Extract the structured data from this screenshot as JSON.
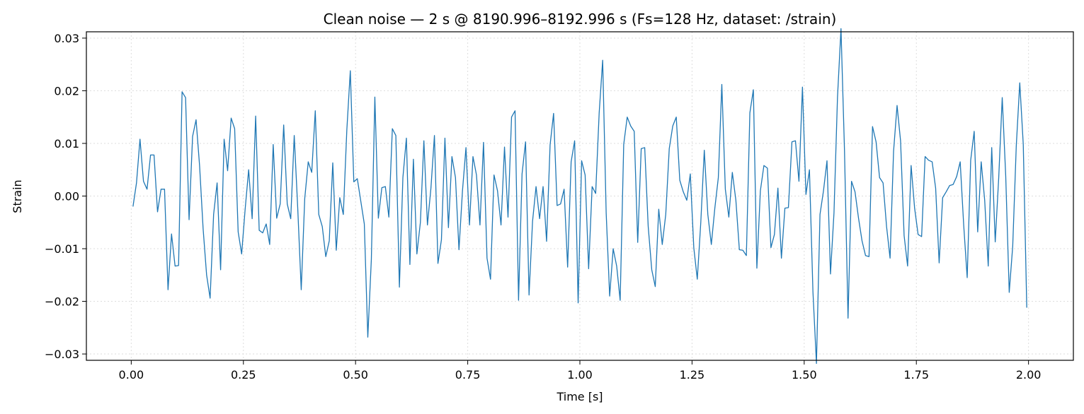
{
  "chart_data": {
    "type": "line",
    "title": "Clean noise — 2 s @ 8190.996–8192.996 s  (Fs=128 Hz, dataset: /strain)",
    "xlabel": "Time [s]",
    "ylabel": "Strain",
    "xlim": [
      -0.1,
      2.1
    ],
    "ylim": [
      -0.0312,
      0.0312
    ],
    "xticks": [
      0.0,
      0.25,
      0.5,
      0.75,
      1.0,
      1.25,
      1.5,
      1.75,
      2.0
    ],
    "xtick_labels": [
      "0.00",
      "0.25",
      "0.50",
      "0.75",
      "1.00",
      "1.25",
      "1.50",
      "1.75",
      "2.00"
    ],
    "yticks": [
      0.03,
      0.02,
      0.01,
      0.0,
      -0.01,
      -0.02,
      -0.03
    ],
    "ytick_labels": [
      "0.03",
      "0.02",
      "0.01",
      "0.00",
      "−0.01",
      "−0.02",
      "−0.03"
    ],
    "grid": true,
    "colors": {
      "series": "#1f77b4",
      "grid": "#dddddd",
      "axes": "#000000"
    },
    "series": [
      {
        "x": [
          0.0039,
          0.0117,
          0.0195,
          0.0273,
          0.0352,
          0.043,
          0.0508,
          0.0586,
          0.0664,
          0.0742,
          0.082,
          0.0898,
          0.0977,
          0.1055,
          0.1133,
          0.1211,
          0.1289,
          0.1367,
          0.1445,
          0.1523,
          0.1602,
          0.168,
          0.1758,
          0.1836,
          0.1914,
          0.1992,
          0.207,
          0.2148,
          0.2227,
          0.2305,
          0.2383,
          0.2461,
          0.2539,
          0.2617,
          0.2695,
          0.2773,
          0.2852,
          0.293,
          0.3008,
          0.3086,
          0.3164,
          0.3242,
          0.332,
          0.3398,
          0.3477,
          0.3555,
          0.3633,
          0.3711,
          0.3789,
          0.3867,
          0.3945,
          0.4023,
          0.4102,
          0.418,
          0.4258,
          0.4336,
          0.4414,
          0.4492,
          0.457,
          0.4648,
          0.4727,
          0.4805,
          0.4883,
          0.4961,
          0.5039,
          0.5117,
          0.5195,
          0.5273,
          0.5352,
          0.543,
          0.5508,
          0.5586,
          0.5664,
          0.5742,
          0.582,
          0.5898,
          0.5977,
          0.6055,
          0.6133,
          0.6211,
          0.6289,
          0.6367,
          0.6445,
          0.6523,
          0.6602,
          0.668,
          0.6758,
          0.6836,
          0.6914,
          0.6992,
          0.707,
          0.7148,
          0.7227,
          0.7305,
          0.7383,
          0.7461,
          0.7539,
          0.7617,
          0.7695,
          0.7773,
          0.7852,
          0.793,
          0.8008,
          0.8086,
          0.8164,
          0.8242,
          0.832,
          0.8398,
          0.8477,
          0.8555,
          0.8633,
          0.8711,
          0.8789,
          0.8867,
          0.8945,
          0.9023,
          0.9102,
          0.918,
          0.9258,
          0.9336,
          0.9414,
          0.9492,
          0.957,
          0.9648,
          0.9727,
          0.9805,
          0.9883,
          0.9961,
          1.0039,
          1.0117,
          1.0195,
          1.0273,
          1.0352,
          1.043,
          1.0508,
          1.0586,
          1.0664,
          1.0742,
          1.082,
          1.0898,
          1.0977,
          1.1055,
          1.1133,
          1.1211,
          1.1289,
          1.1367,
          1.1445,
          1.1523,
          1.1602,
          1.168,
          1.1758,
          1.1836,
          1.1914,
          1.1992,
          1.207,
          1.2148,
          1.2227,
          1.2305,
          1.2383,
          1.2461,
          1.2539,
          1.2617,
          1.2695,
          1.2773,
          1.2852,
          1.293,
          1.3008,
          1.3086,
          1.3164,
          1.3242,
          1.332,
          1.3398,
          1.3477,
          1.3555,
          1.3633,
          1.3711,
          1.3789,
          1.3867,
          1.3945,
          1.4023,
          1.4102,
          1.418,
          1.4258,
          1.4336,
          1.4414,
          1.4492,
          1.457,
          1.4648,
          1.4727,
          1.4805,
          1.4883,
          1.4961,
          1.5039,
          1.5117,
          1.5195,
          1.5273,
          1.5352,
          1.543,
          1.5508,
          1.5586,
          1.5664,
          1.5742,
          1.582,
          1.5898,
          1.5977,
          1.6055,
          1.6133,
          1.6211,
          1.6289,
          1.6367,
          1.6445,
          1.6523,
          1.6602,
          1.668,
          1.6758,
          1.6836,
          1.6914,
          1.6992,
          1.707,
          1.7148,
          1.7227,
          1.7305,
          1.7383,
          1.7461,
          1.7539,
          1.7617,
          1.7695,
          1.7773,
          1.7852,
          1.793,
          1.8008,
          1.8086,
          1.8164,
          1.8242,
          1.832,
          1.8398,
          1.8477,
          1.8555,
          1.8633,
          1.8711,
          1.8789,
          1.8867,
          1.8945,
          1.9023,
          1.9102,
          1.918,
          1.9258,
          1.9336,
          1.9414,
          1.9492,
          1.957,
          1.9648,
          1.9727,
          1.9805,
          1.9883,
          1.9961
        ],
        "y": [
          -0.002,
          0.0025,
          0.0108,
          0.0028,
          0.0013,
          0.0078,
          0.0078,
          -0.003,
          0.0013,
          0.0013,
          -0.0178,
          -0.0072,
          -0.0133,
          -0.0132,
          0.0198,
          0.0187,
          -0.0045,
          0.0113,
          0.0145,
          0.0058,
          -0.0062,
          -0.015,
          -0.0194,
          -0.0035,
          0.0025,
          -0.014,
          0.0108,
          0.0048,
          0.0148,
          0.0128,
          -0.0068,
          -0.011,
          -0.0025,
          0.005,
          -0.0043,
          0.0152,
          -0.0065,
          -0.007,
          -0.0053,
          -0.0092,
          0.0098,
          -0.0042,
          -0.0015,
          0.0135,
          -0.0015,
          -0.0043,
          0.0115,
          -0.0023,
          -0.0178,
          -0.0005,
          0.0065,
          0.0045,
          0.0162,
          -0.0035,
          -0.0058,
          -0.0115,
          -0.0085,
          0.0063,
          -0.0103,
          -0.0003,
          -0.0035,
          0.0125,
          0.0238,
          0.0027,
          0.0033,
          -0.001,
          -0.0053,
          -0.0268,
          -0.012,
          0.0188,
          -0.0042,
          0.0016,
          0.0018,
          -0.004,
          0.0128,
          0.0115,
          -0.0173,
          0.0035,
          0.011,
          -0.013,
          0.007,
          -0.011,
          -0.005,
          0.0105,
          -0.0055,
          0.0015,
          0.0115,
          -0.0128,
          -0.0083,
          0.011,
          -0.006,
          0.0075,
          0.0035,
          -0.0102,
          0.001,
          0.0092,
          -0.0055,
          0.0075,
          0.004,
          -0.0055,
          0.0102,
          -0.0118,
          -0.0158,
          0.004,
          0.001,
          -0.0055,
          0.0093,
          -0.004,
          0.015,
          0.0162,
          -0.0198,
          0.0042,
          0.0103,
          -0.0188,
          -0.0048,
          0.0018,
          -0.0043,
          0.0018,
          -0.0086,
          0.0097,
          0.0157,
          -0.0018,
          -0.0015,
          0.0013,
          -0.0135,
          0.0065,
          0.0105,
          -0.0203,
          0.0067,
          0.004,
          -0.0138,
          0.0018,
          0.0005,
          0.0158,
          0.0258,
          -0.0032,
          -0.019,
          -0.01,
          -0.0133,
          -0.0198,
          0.0098,
          0.015,
          0.0133,
          0.0123,
          -0.0088,
          0.009,
          0.0092,
          -0.0058,
          -0.014,
          -0.0172,
          -0.0025,
          -0.0092,
          -0.0035,
          0.009,
          0.0133,
          0.015,
          0.003,
          0.0008,
          -0.0008,
          0.0042,
          -0.0098,
          -0.0158,
          -0.005,
          0.0087,
          -0.0035,
          -0.0092,
          -0.0023,
          0.0035,
          0.0212,
          0.0013,
          -0.004,
          0.0045,
          -0.0008,
          -0.0102,
          -0.0103,
          -0.0113,
          0.0158,
          0.0202,
          -0.0137,
          0.001,
          0.0058,
          0.0053,
          -0.0098,
          -0.0073,
          0.0015,
          -0.0118,
          -0.0023,
          -0.0022,
          0.0103,
          0.0105,
          0.0028,
          0.0207,
          0.0003,
          0.005,
          -0.0182,
          -0.0318,
          -0.0035,
          0.001,
          0.0067,
          -0.0148,
          -0.0032,
          0.0187,
          0.0318,
          0.0087,
          -0.0232,
          0.0028,
          0.0008,
          -0.0042,
          -0.0085,
          -0.0113,
          -0.0115,
          0.0132,
          0.0103,
          0.0035,
          0.0025,
          -0.0058,
          -0.0118,
          0.0085,
          0.0172,
          0.0105,
          -0.0075,
          -0.0133,
          0.0058,
          -0.0023,
          -0.0073,
          -0.0077,
          0.0075,
          0.0068,
          0.0065,
          0.0015,
          -0.0127,
          -0.0003,
          0.0008,
          0.002,
          0.0022,
          0.0037,
          0.0065,
          -0.0055,
          -0.0155,
          0.0068,
          0.0123,
          -0.0068,
          0.0065,
          -0.0008,
          -0.0133,
          0.0092,
          -0.0087,
          0.0035,
          0.0187,
          0.0038,
          -0.0183,
          -0.0095,
          0.0095,
          0.0215,
          0.0098,
          -0.0212
        ]
      }
    ]
  }
}
